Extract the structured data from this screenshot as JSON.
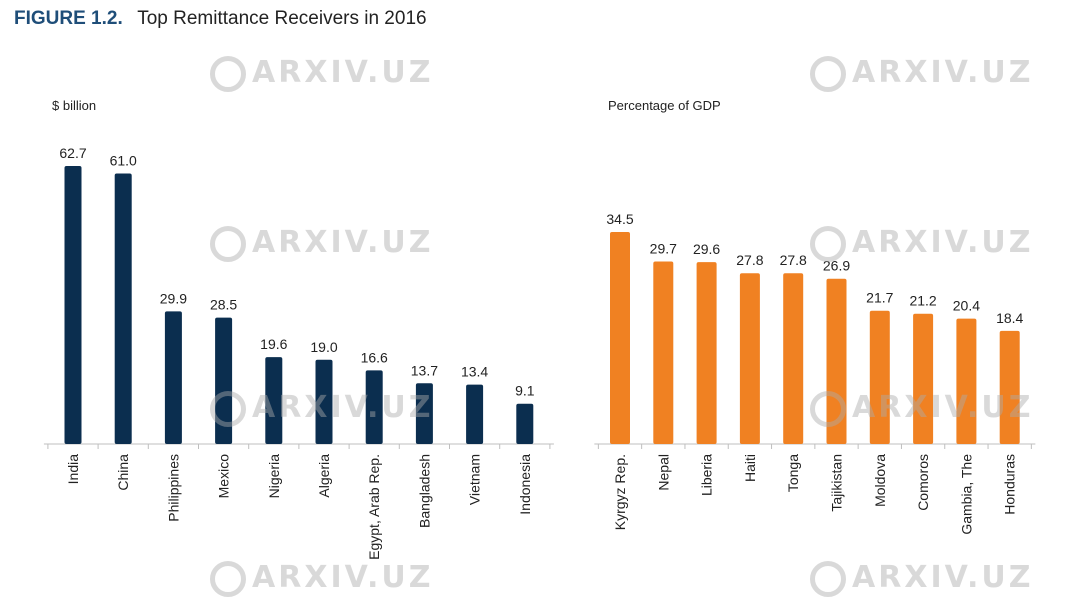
{
  "header": {
    "figure_label": "FIGURE 1.2.",
    "title": "Top Remittance Receivers in 2016"
  },
  "watermark": {
    "text": "ARXIV.UZ"
  },
  "colors": {
    "left_bars": "#0b2e4f",
    "right_bars": "#f08122",
    "axis": "#bfbfbf",
    "label": "#222222"
  },
  "chart_data": [
    {
      "type": "bar",
      "ylabel": "$ billion",
      "categories": [
        "India",
        "China",
        "Philippines",
        "Mexico",
        "Nigeria",
        "Algeria",
        "Egypt, Arab Rep.",
        "Bangladesh",
        "Vietnam",
        "Indonesia"
      ],
      "values": [
        62.7,
        61.0,
        29.9,
        28.5,
        19.6,
        19.0,
        16.6,
        13.7,
        13.4,
        9.1
      ],
      "ylim": [
        0,
        65
      ],
      "grid": false
    },
    {
      "type": "bar",
      "ylabel": "Percentage of GDP",
      "categories": [
        "Kyrgyz Rep.",
        "Nepal",
        "Liberia",
        "Haiti",
        "Tonga",
        "Tajikistan",
        "Moldova",
        "Comoros",
        "Gambia, The",
        "Honduras"
      ],
      "values": [
        34.5,
        29.7,
        29.6,
        27.8,
        27.8,
        26.9,
        21.7,
        21.2,
        20.4,
        18.4
      ],
      "ylim": [
        0,
        36
      ],
      "grid": false
    }
  ]
}
